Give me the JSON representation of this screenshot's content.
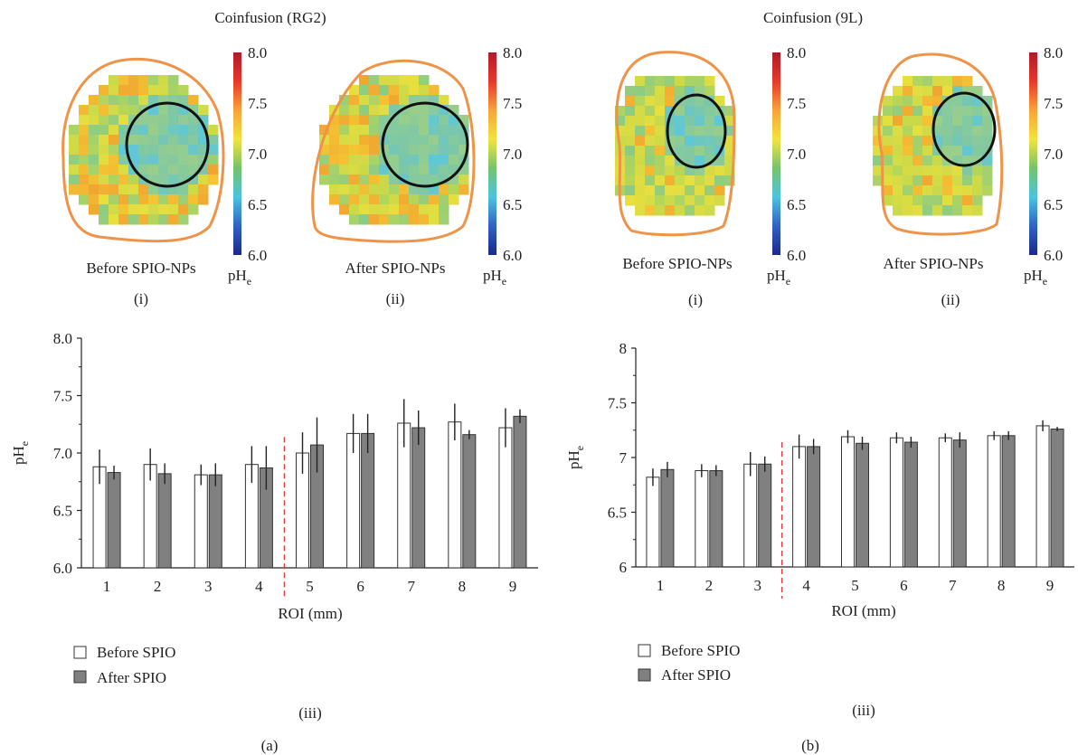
{
  "panels": [
    {
      "label": "(a)",
      "title": "Coinfusion (RG2)",
      "maps": [
        {
          "caption": "Before SPIO-NPs",
          "sublabel": "(i)"
        },
        {
          "caption": "After SPIO-NPs",
          "sublabel": "(ii)"
        }
      ],
      "chart_sublabel": "(iii)"
    },
    {
      "label": "(b)",
      "title": "Coinfusion (9L)",
      "maps": [
        {
          "caption": "Before SPIO-NPs",
          "sublabel": "(i)"
        },
        {
          "caption": "After SPIO-NPs",
          "sublabel": "(ii)"
        }
      ],
      "chart_sublabel": "(iii)"
    }
  ],
  "colorbar": {
    "ticks": [
      "8.0",
      "7.5",
      "7.0",
      "6.5",
      "6.0"
    ],
    "label_main": "pH",
    "label_sub": "e",
    "colors": [
      "#b2182b",
      "#e8382a",
      "#f7a33a",
      "#f2e33d",
      "#74c46b",
      "#4cc3df",
      "#2f62c4",
      "#1b2a8a"
    ]
  },
  "legend": {
    "before_label": "Before SPIO",
    "after_label": "After SPIO",
    "before_color": "#ffffff",
    "after_color": "#808080"
  },
  "chart_data": [
    {
      "type": "bar",
      "xlabel": "ROI (mm)",
      "ylabel_main": "pH",
      "ylabel_sub": "e",
      "ylim": [
        6.0,
        8.0
      ],
      "yticks": [
        "6.0",
        "6.5",
        "7.0",
        "7.5",
        "8.0"
      ],
      "ytick_values": [
        6.0,
        6.5,
        7.0,
        7.5,
        8.0
      ],
      "categories": [
        "1",
        "2",
        "3",
        "4",
        "5",
        "6",
        "7",
        "8",
        "9"
      ],
      "divider_after_category": "4",
      "series": [
        {
          "name": "Before SPIO",
          "values": [
            6.88,
            6.9,
            6.81,
            6.9,
            7.0,
            7.17,
            7.26,
            7.27,
            7.22
          ],
          "errors": [
            0.15,
            0.14,
            0.09,
            0.16,
            0.18,
            0.17,
            0.21,
            0.16,
            0.17
          ]
        },
        {
          "name": "After SPIO",
          "values": [
            6.83,
            6.82,
            6.81,
            6.87,
            7.07,
            7.17,
            7.22,
            7.16,
            7.32
          ],
          "errors": [
            0.06,
            0.09,
            0.1,
            0.19,
            0.24,
            0.17,
            0.15,
            0.04,
            0.06
          ]
        }
      ]
    },
    {
      "type": "bar",
      "xlabel": "ROI (mm)",
      "ylabel_main": "pH",
      "ylabel_sub": "e",
      "ylim": [
        6,
        8
      ],
      "yticks": [
        "6",
        "6.5",
        "7",
        "7.5",
        "8"
      ],
      "ytick_values": [
        6,
        6.5,
        7,
        7.5,
        8
      ],
      "categories": [
        "1",
        "2",
        "3",
        "4",
        "5",
        "6",
        "7",
        "8",
        "9"
      ],
      "divider_after_category": "3",
      "series": [
        {
          "name": "Before SPIO",
          "values": [
            6.82,
            6.88,
            6.94,
            7.1,
            7.19,
            7.18,
            7.18,
            7.2,
            7.29
          ],
          "errors": [
            0.08,
            0.06,
            0.11,
            0.11,
            0.06,
            0.05,
            0.04,
            0.04,
            0.05
          ]
        },
        {
          "name": "After SPIO",
          "values": [
            6.89,
            6.88,
            6.94,
            7.1,
            7.13,
            7.14,
            7.16,
            7.2,
            7.26
          ],
          "errors": [
            0.07,
            0.05,
            0.07,
            0.07,
            0.06,
            0.05,
            0.07,
            0.04,
            0.02
          ]
        }
      ]
    }
  ]
}
